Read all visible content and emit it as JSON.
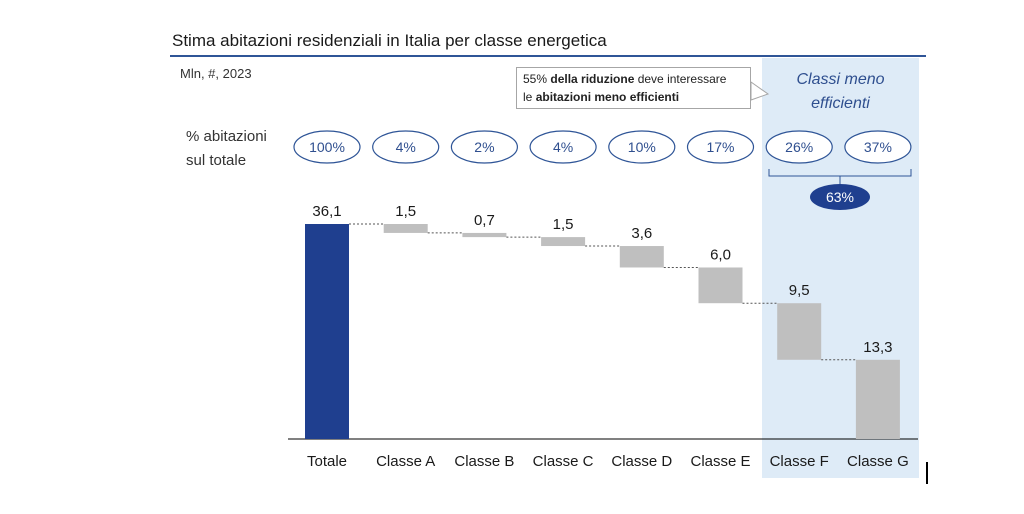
{
  "title": "Stima abitazioni residenziali in Italia per classe energetica",
  "units": "Mln, #, 2023",
  "percent_label_line1": "% abitazioni",
  "percent_label_line2": "sul totale",
  "highlight_title_line1": "Classi meno",
  "highlight_title_line2": "efficienti",
  "callout": {
    "part1": "55% ",
    "bold1": "della riduzione",
    "part2": " deve interessare",
    "part3": "le ",
    "bold2": "abitazioni meno efficienti"
  },
  "group_total": "63%",
  "colors": {
    "total_bar": "#1f3f8f",
    "step_bar": "#bfbfbf",
    "highlight": "#deebf7",
    "pill_border": "#2f5597",
    "group_pill": "#1f3f8f",
    "title_rule": "#2f5597"
  },
  "chart_data": {
    "type": "bar",
    "subtype": "waterfall",
    "categories": [
      "Totale",
      "Classe A",
      "Classe B",
      "Classe C",
      "Classe D",
      "Classe E",
      "Classe F",
      "Classe G"
    ],
    "values": [
      36.1,
      1.5,
      0.7,
      1.5,
      3.6,
      6.0,
      9.5,
      13.3
    ],
    "value_labels": [
      "36,1",
      "1,5",
      "0,7",
      "1,5",
      "3,6",
      "6,0",
      "9,5",
      "13,3"
    ],
    "percentages": [
      "100%",
      "4%",
      "2%",
      "4%",
      "10%",
      "17%",
      "26%",
      "37%"
    ],
    "ylim": [
      0,
      36.1
    ],
    "xlabel": "",
    "ylabel": "",
    "grid": false
  }
}
